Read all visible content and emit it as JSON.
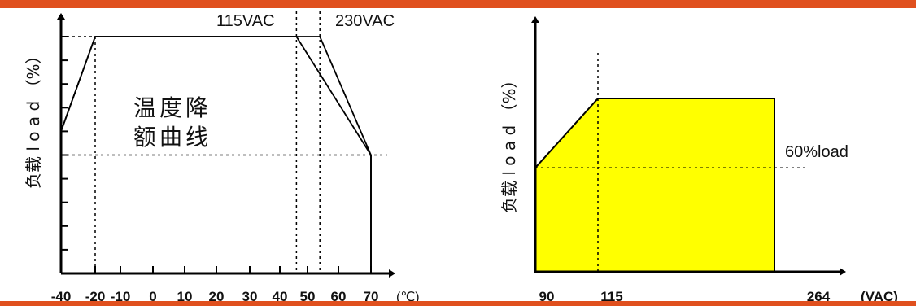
{
  "colors": {
    "banner": "#e0501e",
    "line": "#000000",
    "fill": "#ffff00"
  },
  "chart_data": [
    {
      "type": "line",
      "title": "温度降\n额曲线",
      "title_lines": [
        "温度降",
        "额曲线"
      ],
      "ylabel": "负载 l o a d （%）",
      "x_unit": "(℃)",
      "x_ticks": [
        -40,
        -20,
        -10,
        0,
        10,
        20,
        30,
        40,
        50,
        60,
        70
      ],
      "x_tick_labels": [
        "-40",
        "-20",
        "-10",
        "0",
        "10",
        "20",
        "30",
        "40",
        "50",
        "60",
        "70"
      ],
      "xlim": [
        -40,
        70
      ],
      "ylim": [
        0,
        100
      ],
      "grid": false,
      "series": [
        {
          "name": "115VAC",
          "x": [
            -40,
            -20,
            46,
            70,
            70
          ],
          "y": [
            60,
            100,
            100,
            50,
            0
          ]
        },
        {
          "name": "230VAC",
          "x": [
            -40,
            -20,
            54,
            70,
            70
          ],
          "y": [
            60,
            100,
            100,
            50,
            0
          ]
        }
      ],
      "reference_lines": [
        {
          "axis": "x",
          "value": -20
        },
        {
          "axis": "x",
          "value": 46,
          "label": "115VAC"
        },
        {
          "axis": "x",
          "value": 54,
          "label": "230VAC"
        },
        {
          "axis": "y",
          "value": 50
        },
        {
          "axis": "y",
          "value": 100
        }
      ]
    },
    {
      "type": "area",
      "ylabel": "负载 l o a d （%）",
      "x_unit": "(VAC)",
      "x_tick_labels": [
        "90",
        "115",
        "264"
      ],
      "x_ticks": [
        90,
        115,
        264
      ],
      "xlim": [
        90,
        264
      ],
      "ylim": [
        0,
        100
      ],
      "grid": false,
      "series": [
        {
          "x": [
            90,
            115,
            230,
            230,
            90
          ],
          "y": [
            60,
            100,
            100,
            0,
            0
          ]
        }
      ],
      "annotations": [
        {
          "text": "60%load",
          "y": 60
        }
      ],
      "reference_lines": [
        {
          "axis": "x",
          "value": 115
        },
        {
          "axis": "y",
          "value": 60
        }
      ]
    }
  ]
}
